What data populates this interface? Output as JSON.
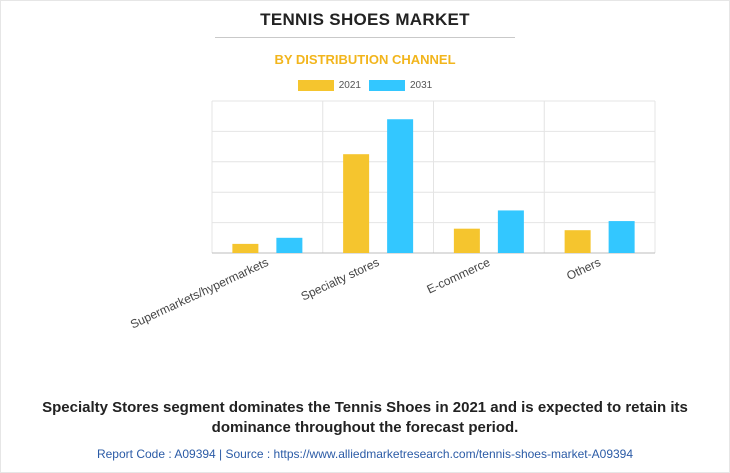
{
  "title": "TENNIS SHOES MARKET",
  "subtitle": "BY DISTRIBUTION CHANNEL",
  "colors": {
    "y2021": "#f5c52e",
    "y2031": "#33c7ff",
    "subtitle": "#f2b51c"
  },
  "chart_data": {
    "type": "bar",
    "categories": [
      "Supermarkets/hypermarkets",
      "Specialty stores",
      "E-commerce",
      "Others"
    ],
    "series": [
      {
        "name": "2021",
        "values": [
          3,
          32.5,
          8,
          7.5
        ]
      },
      {
        "name": "2031",
        "values": [
          5,
          44,
          14,
          10.5
        ]
      }
    ],
    "ylim": [
      0,
      50
    ],
    "grid": true,
    "legend": "top-center"
  },
  "caption": {
    "line1": "Specialty Stores segment dominates the Tennis Shoes in 2021 and is expected to retain its",
    "line2": "dominance throughout the forecast period."
  },
  "footer": "Report Code : A09394  |  Source : https://www.alliedmarketresearch.com/tennis-shoes-market-A09394"
}
